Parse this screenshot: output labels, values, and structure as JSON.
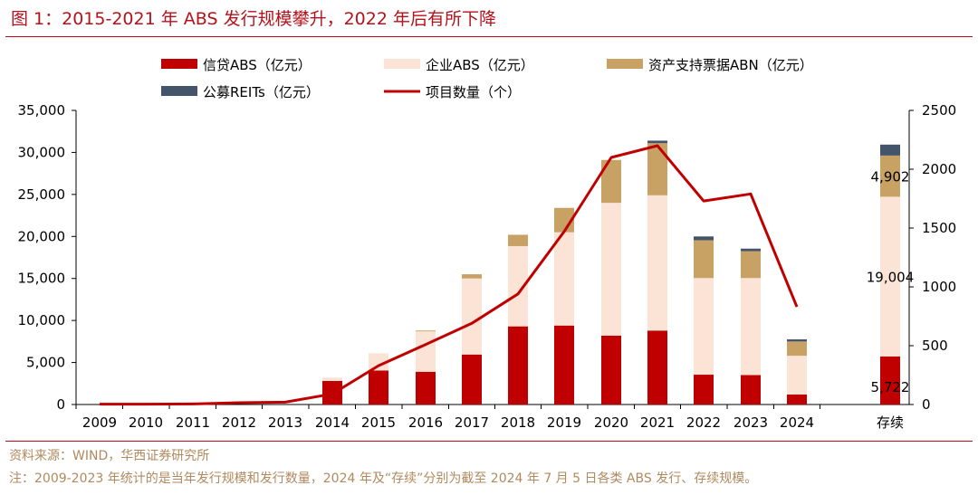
{
  "header": {
    "title": "图 1：2015-2021 年 ABS 发行规模攀升，2022 年后有所下降"
  },
  "footer": {
    "source": "资料来源：WIND，华西证券研究所",
    "note": "注：2009-2023 年统计的是当年发行规模和发行数量，2024 年及“存续”分别为截至 2024 年 7 月 5 日各类 ABS 发行、存续规模。"
  },
  "chart_data": {
    "type": "bar",
    "stacked": true,
    "categories": [
      "2009",
      "2010",
      "2011",
      "2012",
      "2013",
      "2014",
      "2015",
      "2016",
      "2017",
      "2018",
      "2019",
      "2020",
      "2021",
      "2022",
      "2023",
      "2024",
      "存续"
    ],
    "series": [
      {
        "name": "信贷ABS（亿元）",
        "color": "#c00000",
        "axis": "left",
        "values": [
          0,
          0,
          0,
          0,
          0,
          2800,
          4050,
          3900,
          5950,
          9300,
          9400,
          8200,
          8800,
          3550,
          3500,
          1200,
          5722
        ]
      },
      {
        "name": "企业ABS（亿元）",
        "color": "#fbe3d6",
        "axis": "left",
        "values": [
          0,
          0,
          0,
          0,
          0,
          400,
          2050,
          4800,
          9050,
          9550,
          11100,
          15800,
          16100,
          11500,
          11550,
          4600,
          19004
        ]
      },
      {
        "name": "资产支持票据ABN（亿元）",
        "color": "#c8a165",
        "axis": "left",
        "values": [
          0,
          0,
          0,
          0,
          0,
          0,
          0,
          100,
          500,
          1350,
          2900,
          5100,
          6200,
          4500,
          3200,
          1700,
          4902
        ]
      },
      {
        "name": "公募REITs（亿元）",
        "color": "#44546a",
        "axis": "left",
        "values": [
          0,
          0,
          0,
          0,
          0,
          0,
          0,
          0,
          0,
          0,
          0,
          0,
          300,
          450,
          300,
          250,
          1300
        ]
      },
      {
        "name": "项目数量（个）",
        "type": "line",
        "color": "#c00000",
        "axis": "right",
        "values": [
          3,
          3,
          5,
          15,
          20,
          90,
          330,
          510,
          690,
          940,
          1470,
          2100,
          2200,
          1730,
          1790,
          830,
          null
        ]
      }
    ],
    "data_labels": [
      {
        "category": "存续",
        "series": "信贷ABS（亿元）",
        "text": "5,722"
      },
      {
        "category": "存续",
        "series": "企业ABS（亿元）",
        "text": "19,004"
      },
      {
        "category": "存续",
        "series": "资产支持票据ABN（亿元）",
        "text": "4,902"
      }
    ],
    "ylim_left": [
      0,
      35000
    ],
    "ylim_right": [
      0,
      2500
    ],
    "yticks_left": [
      "0",
      "5,000",
      "10,000",
      "15,000",
      "20,000",
      "25,000",
      "30,000",
      "35,000"
    ],
    "yticks_right": [
      "0",
      "500",
      "1000",
      "1500",
      "2000",
      "2500"
    ],
    "legend": [
      "信贷ABS（亿元）",
      "企业ABS（亿元）",
      "资产支持票据ABN（亿元）",
      "公募REITs（亿元）",
      "项目数量（个）"
    ],
    "legend_position": "top",
    "grid": false
  }
}
